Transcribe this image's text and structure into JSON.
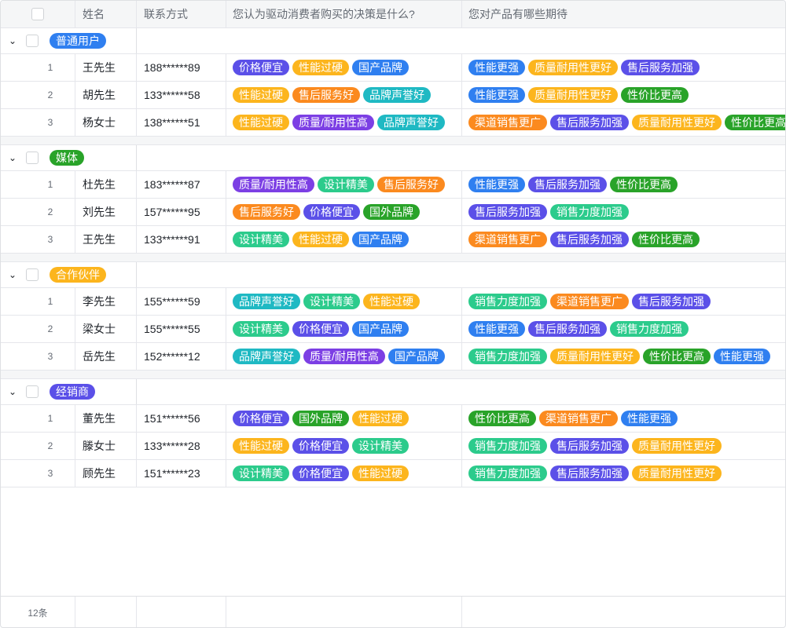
{
  "header": {
    "columns": [
      "姓名",
      "联系方式",
      "您认为驱动消费者购买的决策是什么?",
      "您对产品有哪些期待"
    ]
  },
  "tag_colors": {
    "价格便宜": "#5b50e8",
    "性能过硬": "#fcb51d",
    "国产品牌": "#2f7ff0",
    "售后服务好": "#fb8a1f",
    "品牌声誉好": "#1fb9c3",
    "质量/耐用性高": "#7c3fe4",
    "设计精美": "#2ccb8c",
    "国外品牌": "#29a329",
    "性能更强": "#2f7ff0",
    "质量耐用性更好": "#fcb51d",
    "售后服务加强": "#5b50e8",
    "性价比更高": "#29a329",
    "渠道销售更广": "#fb8a1f",
    "销售力度加强": "#2ccb8c"
  },
  "groups": [
    {
      "label": "普通用户",
      "color": "#2f7ff0",
      "rows": [
        {
          "index": "1",
          "name": "王先生",
          "phone": "188******89",
          "q1": [
            "价格便宜",
            "性能过硬",
            "国产品牌"
          ],
          "q2": [
            "性能更强",
            "质量耐用性更好",
            "售后服务加强"
          ]
        },
        {
          "index": "2",
          "name": "胡先生",
          "phone": "133******58",
          "q1": [
            "性能过硬",
            "售后服务好",
            "品牌声誉好"
          ],
          "q2": [
            "性能更强",
            "质量耐用性更好",
            "性价比更高"
          ]
        },
        {
          "index": "3",
          "name": "杨女士",
          "phone": "138******51",
          "q1": [
            "性能过硬",
            "质量/耐用性高",
            "品牌声誉好"
          ],
          "q2": [
            "渠道销售更广",
            "售后服务加强",
            "质量耐用性更好",
            "性价比更高"
          ]
        }
      ]
    },
    {
      "label": "媒体",
      "color": "#29a329",
      "rows": [
        {
          "index": "1",
          "name": "杜先生",
          "phone": "183******87",
          "q1": [
            "质量/耐用性高",
            "设计精美",
            "售后服务好"
          ],
          "q2": [
            "性能更强",
            "售后服务加强",
            "性价比更高"
          ]
        },
        {
          "index": "2",
          "name": "刘先生",
          "phone": "157******95",
          "q1": [
            "售后服务好",
            "价格便宜",
            "国外品牌"
          ],
          "q2": [
            "售后服务加强",
            "销售力度加强"
          ]
        },
        {
          "index": "3",
          "name": "王先生",
          "phone": "133******91",
          "q1": [
            "设计精美",
            "性能过硬",
            "国产品牌"
          ],
          "q2": [
            "渠道销售更广",
            "售后服务加强",
            "性价比更高"
          ]
        }
      ]
    },
    {
      "label": "合作伙伴",
      "color": "#fcb51d",
      "rows": [
        {
          "index": "1",
          "name": "李先生",
          "phone": "155******59",
          "q1": [
            "品牌声誉好",
            "设计精美",
            "性能过硬"
          ],
          "q2": [
            "销售力度加强",
            "渠道销售更广",
            "售后服务加强"
          ]
        },
        {
          "index": "2",
          "name": "梁女士",
          "phone": "155******55",
          "q1": [
            "设计精美",
            "价格便宜",
            "国产品牌"
          ],
          "q2": [
            "性能更强",
            "售后服务加强",
            "销售力度加强"
          ]
        },
        {
          "index": "3",
          "name": "岳先生",
          "phone": "152******12",
          "q1": [
            "品牌声誉好",
            "质量/耐用性高",
            "国产品牌"
          ],
          "q2": [
            "销售力度加强",
            "质量耐用性更好",
            "性价比更高",
            "性能更强"
          ]
        }
      ]
    },
    {
      "label": "经销商",
      "color": "#5b50e8",
      "rows": [
        {
          "index": "1",
          "name": "董先生",
          "phone": "151******56",
          "q1": [
            "价格便宜",
            "国外品牌",
            "性能过硬"
          ],
          "q2": [
            "性价比更高",
            "渠道销售更广",
            "性能更强"
          ]
        },
        {
          "index": "2",
          "name": "滕女士",
          "phone": "133******28",
          "q1": [
            "性能过硬",
            "价格便宜",
            "设计精美"
          ],
          "q2": [
            "销售力度加强",
            "售后服务加强",
            "质量耐用性更好"
          ]
        },
        {
          "index": "3",
          "name": "顾先生",
          "phone": "151******23",
          "q1": [
            "设计精美",
            "价格便宜",
            "性能过硬"
          ],
          "q2": [
            "销售力度加强",
            "售后服务加强",
            "质量耐用性更好"
          ]
        }
      ]
    }
  ],
  "footer": {
    "count": "12条"
  }
}
